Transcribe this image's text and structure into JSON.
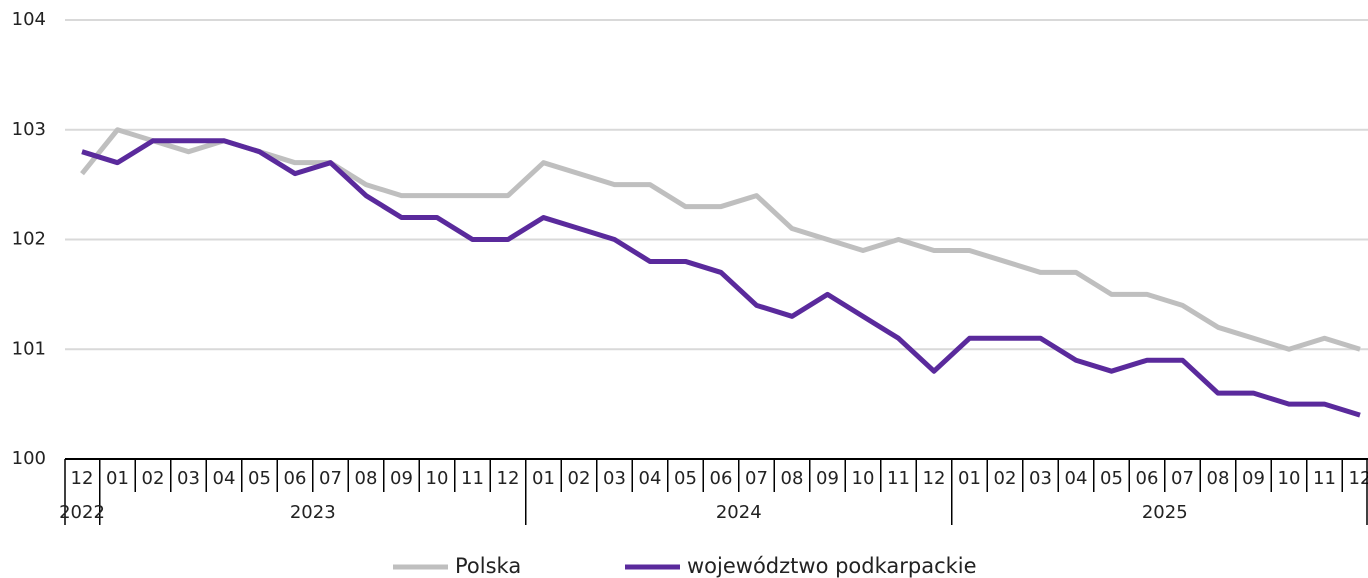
{
  "chart_data": {
    "type": "line",
    "categories": [
      "12",
      "01",
      "02",
      "03",
      "04",
      "05",
      "06",
      "07",
      "08",
      "09",
      "10",
      "11",
      "12",
      "01",
      "02",
      "03",
      "04",
      "05",
      "06",
      "07",
      "08",
      "09",
      "10",
      "11",
      "12",
      "01",
      "02",
      "03",
      "04",
      "05",
      "06",
      "07",
      "08",
      "09",
      "10",
      "11",
      "12"
    ],
    "x_groups": [
      "2022",
      "2023",
      "2024",
      "2025"
    ],
    "ylim": [
      100,
      104
    ],
    "yticks": [
      100,
      101,
      102,
      103,
      104
    ],
    "grid": true,
    "legend": "bottom",
    "series": [
      {
        "name": "Polska",
        "color": "#bfbfbf",
        "values": [
          102.6,
          103.0,
          102.9,
          102.8,
          102.9,
          102.8,
          102.7,
          102.7,
          102.5,
          102.4,
          102.4,
          102.4,
          102.4,
          102.7,
          102.6,
          102.5,
          102.5,
          102.3,
          102.3,
          102.4,
          102.1,
          102.0,
          101.9,
          102.0,
          101.9,
          101.9,
          101.8,
          101.7,
          101.7,
          101.5,
          101.5,
          101.4,
          101.2,
          101.1,
          101.0,
          101.1,
          101.0
        ]
      },
      {
        "name": "województwo podkarpackie",
        "color": "#5a2a9c",
        "values": [
          102.8,
          102.7,
          102.9,
          102.9,
          102.9,
          102.8,
          102.6,
          102.7,
          102.4,
          102.2,
          102.2,
          102.0,
          102.0,
          102.2,
          102.1,
          102.0,
          101.8,
          101.8,
          101.7,
          101.4,
          101.3,
          101.5,
          101.3,
          101.1,
          100.8,
          101.1,
          101.1,
          101.1,
          100.9,
          100.8,
          100.9,
          100.9,
          100.6,
          100.6,
          100.5,
          100.5,
          100.4
        ]
      }
    ]
  }
}
